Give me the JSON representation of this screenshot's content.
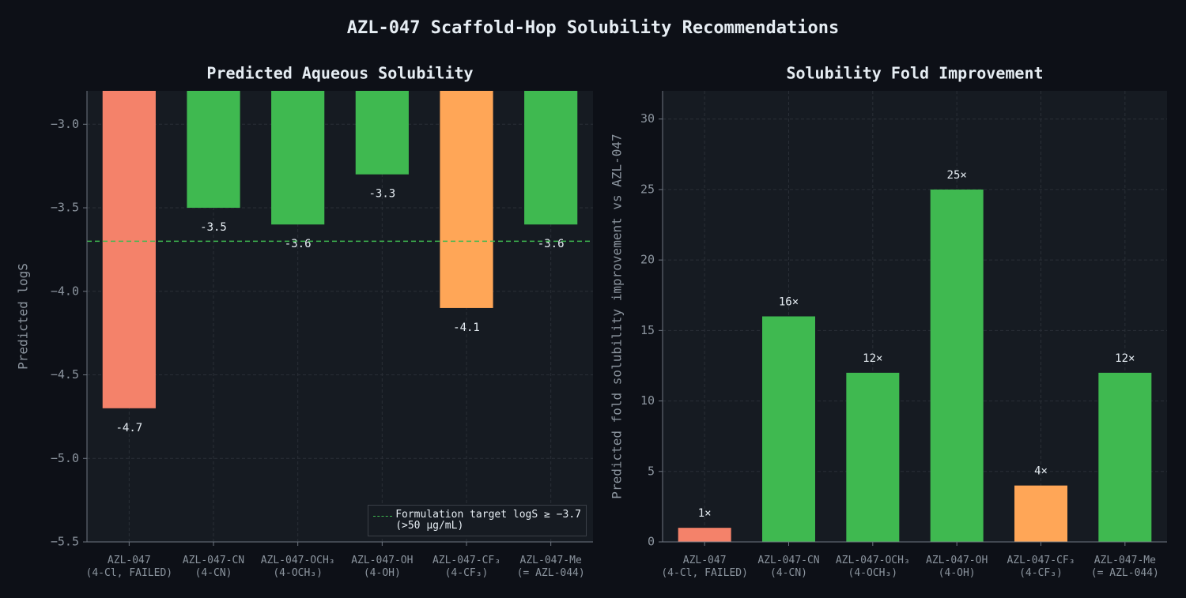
{
  "title": "AZL-047 Scaffold-Hop Solubility Recommendations",
  "chart_data": [
    {
      "type": "bar",
      "title": "Predicted Aqueous Solubility",
      "ylabel": "Predicted logS",
      "categories": [
        "AZL-047\n(4-Cl, FAILED)",
        "AZL-047-CN\n(4-CN)",
        "AZL-047-OCH₃\n(4-OCH₃)",
        "AZL-047-OH\n(4-OH)",
        "AZL-047-CF₃\n(4-CF₃)",
        "AZL-047-Me\n(= AZL-044)"
      ],
      "values": [
        -4.7,
        -3.5,
        -3.6,
        -3.3,
        -4.1,
        -3.6
      ],
      "colors": [
        "#f4826a",
        "#3fb950",
        "#3fb950",
        "#3fb950",
        "#ffa657",
        "#3fb950"
      ],
      "ylim": [
        -5.5,
        -2.8
      ],
      "yticks": [
        {
          "value": -3.0,
          "label": "−3.0"
        },
        {
          "value": -3.5,
          "label": "−3.5"
        },
        {
          "value": -4.0,
          "label": "−4.0"
        },
        {
          "value": -4.5,
          "label": "−4.5"
        },
        {
          "value": -5.0,
          "label": "−5.0"
        },
        {
          "value": -5.5,
          "label": "−5.5"
        }
      ],
      "grid": true,
      "reference_line": {
        "value": -3.7,
        "label": "Formulation target  logS ≥ −3.7\n(>50 μg/mL)",
        "color": "#3fb950"
      },
      "legend": "lower right",
      "value_label_position": "below"
    },
    {
      "type": "bar",
      "title": "Solubility Fold Improvement",
      "ylabel": "Predicted fold solubility improvement vs AZL-047",
      "categories": [
        "AZL-047\n(4-Cl, FAILED)",
        "AZL-047-CN\n(4-CN)",
        "AZL-047-OCH₃\n(4-OCH₃)",
        "AZL-047-OH\n(4-OH)",
        "AZL-047-CF₃\n(4-CF₃)",
        "AZL-047-Me\n(= AZL-044)"
      ],
      "values": [
        1,
        16,
        12,
        25,
        4,
        12
      ],
      "value_labels": [
        "1×",
        "16×",
        "12×",
        "25×",
        "4×",
        "12×"
      ],
      "colors": [
        "#f4826a",
        "#3fb950",
        "#3fb950",
        "#3fb950",
        "#ffa657",
        "#3fb950"
      ],
      "ylim": [
        0,
        32
      ],
      "yticks": [
        0,
        5,
        10,
        15,
        20,
        25,
        30
      ],
      "grid": true,
      "value_label_position": "above"
    }
  ]
}
